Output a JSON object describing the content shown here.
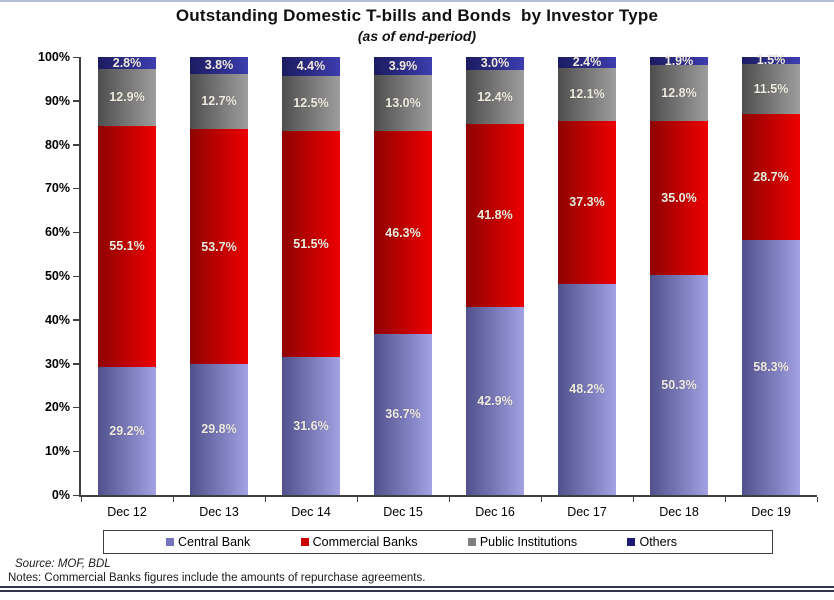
{
  "page": {
    "title": "Outstanding Domestic T-bills and Bonds  by Investor Type",
    "subtitle": "(as of end-period)",
    "source": "Source: MOF, BDL",
    "notes": "Notes: Commercial Banks figures include the amounts of repurchase agreements."
  },
  "colors": {
    "top_rule": "#b3bfd6",
    "bottom_rule": "#33334d",
    "axis": "#3f3f3f",
    "bar_label_text": "#f1ece2"
  },
  "chart_data": {
    "type": "bar",
    "stacked": true,
    "title": "Outstanding Domestic T-bills and Bonds  by Investor Type",
    "subtitle": "(as of end-period)",
    "xlabel": "",
    "ylabel": "",
    "ylim": [
      0,
      100
    ],
    "grid": false,
    "legend_position": "bottom",
    "y_ticks": [
      "0%",
      "10%",
      "20%",
      "30%",
      "40%",
      "50%",
      "60%",
      "70%",
      "80%",
      "90%",
      "100%"
    ],
    "categories": [
      "Dec 12",
      "Dec 13",
      "Dec 14",
      "Dec 15",
      "Dec 16",
      "Dec 17",
      "Dec 18",
      "Dec 19"
    ],
    "series": [
      {
        "name": "Central Bank",
        "legend_color": "#7474ba",
        "gradient": [
          "#50508c",
          "#a2a2e4"
        ],
        "values": [
          29.2,
          29.8,
          31.6,
          36.7,
          42.9,
          48.2,
          50.3,
          58.3
        ]
      },
      {
        "name": "Commercial Banks",
        "legend_color": "#c80000",
        "gradient": [
          "#8f0202",
          "#ee0000"
        ],
        "values": [
          55.1,
          53.7,
          51.5,
          46.3,
          41.8,
          37.3,
          35.0,
          28.7
        ]
      },
      {
        "name": "Public Institutions",
        "legend_color": "#7f7f7f",
        "gradient": [
          "#4e4e4e",
          "#9e9e9e"
        ],
        "values": [
          12.9,
          12.7,
          12.5,
          13.0,
          12.4,
          12.1,
          12.8,
          11.5
        ]
      },
      {
        "name": "Others",
        "legend_color": "#1c1c78",
        "gradient": [
          "#1b1b60",
          "#3d3dae"
        ],
        "values": [
          2.8,
          3.8,
          4.4,
          3.9,
          3.0,
          2.4,
          1.9,
          1.5
        ]
      }
    ]
  }
}
